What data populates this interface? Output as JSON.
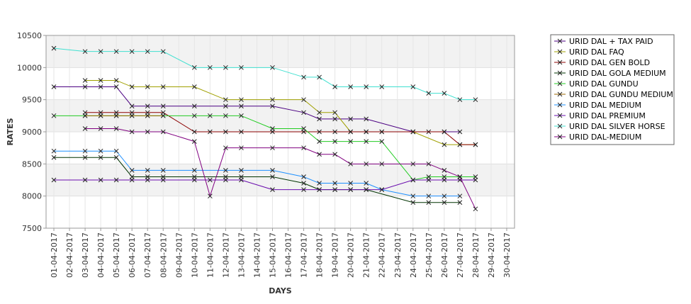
{
  "chart_data": {
    "type": "line",
    "xlabel": "DAYS",
    "ylabel": "RATES",
    "ylim": [
      7500,
      10500
    ],
    "yticks": [
      7500,
      8000,
      8500,
      9000,
      9500,
      10000,
      10500
    ],
    "categories": [
      "01-04-2017",
      "02-04-2017",
      "03-04-2017",
      "04-04-2017",
      "05-04-2017",
      "06-04-2017",
      "07-04-2017",
      "08-04-2017",
      "09-04-2017",
      "10-04-2017",
      "11-04-2017",
      "12-04-2017",
      "13-04-2017",
      "14-04-2017",
      "15-04-2017",
      "16-04-2017",
      "17-04-2017",
      "18-04-2017",
      "19-04-2017",
      "20-04-2017",
      "21-04-2017",
      "22-04-2017",
      "23-04-2017",
      "24-04-2017",
      "25-04-2017",
      "26-04-2017",
      "27-04-2017",
      "28-04-2017",
      "29-04-2017",
      "30-04-2017"
    ],
    "grid": true,
    "legend_position": "right",
    "series": [
      {
        "name": "URID DAL + TAX PAID",
        "color": "#4b0082",
        "values": [
          9700,
          null,
          9700,
          9700,
          9700,
          9400,
          9400,
          9400,
          null,
          9400,
          null,
          9400,
          9400,
          null,
          9400,
          null,
          9300,
          9200,
          9200,
          9200,
          9200,
          null,
          null,
          9000,
          9000,
          9000,
          9000,
          null,
          null,
          null
        ]
      },
      {
        "name": "URID DAL FAQ",
        "color": "#a0a000",
        "values": [
          null,
          null,
          9800,
          9800,
          9800,
          9700,
          9700,
          9700,
          null,
          9700,
          null,
          9500,
          9500,
          null,
          9500,
          null,
          9500,
          9300,
          9300,
          9000,
          9000,
          9000,
          null,
          9000,
          null,
          8800,
          8800,
          8800,
          null,
          null
        ]
      },
      {
        "name": "URID DAL GEN BOLD",
        "color": "#8b0000",
        "values": [
          null,
          null,
          9300,
          9300,
          9300,
          9300,
          9300,
          9300,
          null,
          9000,
          9000,
          9000,
          9000,
          null,
          9000,
          null,
          9000,
          9000,
          9000,
          9000,
          9000,
          9000,
          null,
          9000,
          null,
          9000,
          8800,
          8800,
          null,
          null
        ]
      },
      {
        "name": "URID DAL GOLA MEDIUM",
        "color": "#003300",
        "values": [
          8600,
          null,
          8600,
          8600,
          8600,
          8300,
          8300,
          8300,
          null,
          8300,
          null,
          8300,
          8300,
          null,
          8300,
          null,
          8200,
          8100,
          8100,
          8100,
          8100,
          null,
          null,
          7900,
          7900,
          7900,
          7900,
          null,
          null,
          null
        ]
      },
      {
        "name": "URID DAL GUNDU",
        "color": "#22cc22",
        "values": [
          9250,
          null,
          9250,
          9250,
          9250,
          9250,
          9250,
          9250,
          null,
          9250,
          9250,
          9250,
          9250,
          null,
          9050,
          null,
          9050,
          8850,
          8850,
          8850,
          8850,
          8850,
          null,
          8250,
          8300,
          8300,
          8300,
          8300,
          null,
          null
        ]
      },
      {
        "name": "URID DAL GUNDU MEDIUM",
        "color": "#996600",
        "values": [
          null,
          null,
          9250,
          9250,
          9250,
          9250,
          9250,
          9250,
          null,
          null,
          null,
          null,
          null,
          null,
          null,
          null,
          null,
          null,
          null,
          null,
          null,
          null,
          null,
          null,
          null,
          null,
          null,
          null,
          null,
          null
        ]
      },
      {
        "name": "URID DAL MEDIUM",
        "color": "#1e90ff",
        "values": [
          8700,
          null,
          8700,
          8700,
          8700,
          8400,
          8400,
          8400,
          null,
          8400,
          null,
          8400,
          8400,
          null,
          8400,
          null,
          8300,
          8200,
          8200,
          8200,
          8200,
          8100,
          null,
          8000,
          8000,
          8000,
          8000,
          null,
          null,
          null
        ]
      },
      {
        "name": "URID DAL PREMIUM",
        "color": "#6a0dad",
        "values": [
          8250,
          null,
          8250,
          8250,
          8250,
          8250,
          8250,
          8250,
          null,
          8250,
          8250,
          8250,
          8250,
          null,
          8100,
          null,
          8100,
          8100,
          8100,
          8100,
          8100,
          8100,
          null,
          8250,
          8250,
          8250,
          8250,
          8250,
          null,
          null
        ]
      },
      {
        "name": "URID DAL SILVER HORSE",
        "color": "#40e0d0",
        "values": [
          10300,
          null,
          10250,
          10250,
          10250,
          10250,
          10250,
          10250,
          null,
          10000,
          10000,
          10000,
          10000,
          null,
          10000,
          null,
          9850,
          9850,
          9700,
          9700,
          9700,
          9700,
          null,
          9700,
          9600,
          9600,
          9500,
          9500,
          null,
          null
        ]
      },
      {
        "name": "URID DAL-MEDIUM",
        "color": "#800080",
        "values": [
          null,
          null,
          9050,
          9050,
          9050,
          9000,
          9000,
          9000,
          null,
          8850,
          8000,
          8750,
          8750,
          null,
          8750,
          null,
          8750,
          8650,
          8650,
          8500,
          8500,
          8500,
          null,
          8500,
          8500,
          8400,
          8300,
          7800,
          null,
          null
        ]
      }
    ]
  }
}
